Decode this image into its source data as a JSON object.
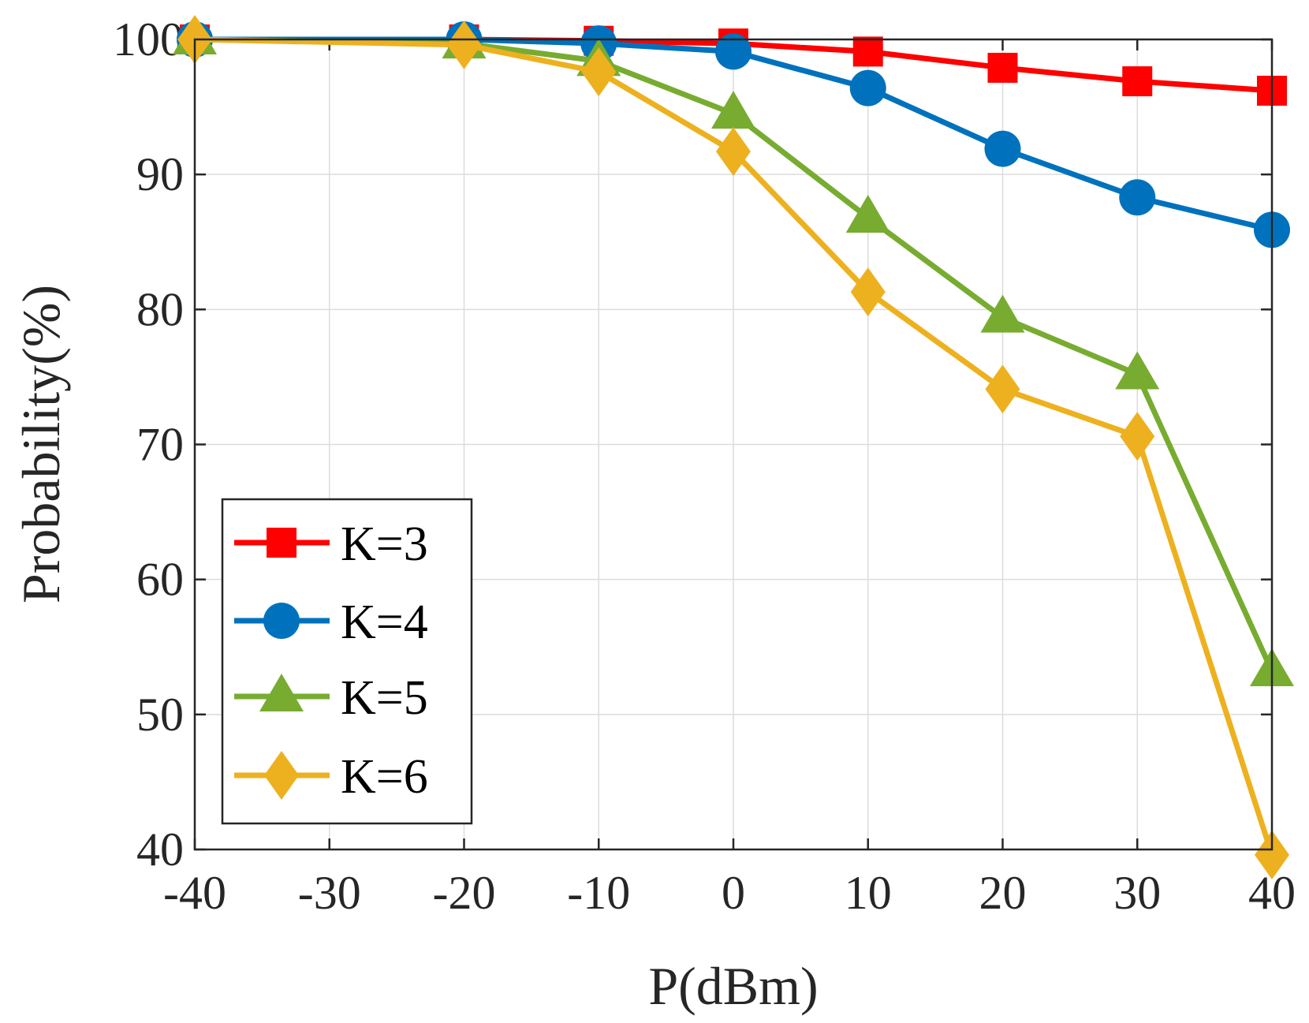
{
  "chart_data": {
    "type": "line",
    "title": "",
    "xlabel": "P(dBm)",
    "ylabel": "Probability(%)",
    "x": [
      -40,
      -20,
      -10,
      0,
      10,
      20,
      30,
      40
    ],
    "xticks": [
      -40,
      -30,
      -20,
      -10,
      0,
      10,
      20,
      30,
      40
    ],
    "xtick_labels": [
      "-40",
      "-30",
      "-20",
      "-10",
      "0",
      "10",
      "20",
      "30",
      "40"
    ],
    "yticks": [
      40,
      50,
      60,
      70,
      80,
      90,
      100
    ],
    "ytick_labels": [
      "40",
      "50",
      "60",
      "70",
      "80",
      "90",
      "100"
    ],
    "xlim": [
      -40,
      40
    ],
    "ylim": [
      40,
      100
    ],
    "grid": true,
    "legend_position": "bottom-left",
    "series": [
      {
        "name": "K=3",
        "marker": "square",
        "color": "#ff0000",
        "values": [
          100,
          100,
          99.9,
          99.7,
          99.1,
          97.9,
          96.9,
          96.2
        ]
      },
      {
        "name": "K=4",
        "marker": "circle",
        "color": "#0072bd",
        "values": [
          100,
          100,
          99.7,
          99.1,
          96.4,
          91.9,
          88.3,
          85.9
        ]
      },
      {
        "name": "K=5",
        "marker": "triangle",
        "color": "#77ac30",
        "values": [
          100,
          99.7,
          98.4,
          94.5,
          86.8,
          79.4,
          75.2,
          53.2
        ]
      },
      {
        "name": "K=6",
        "marker": "diamond",
        "color": "#edb120",
        "values": [
          100,
          99.6,
          97.6,
          91.7,
          81.3,
          74.1,
          70.6,
          39.6
        ]
      }
    ]
  }
}
